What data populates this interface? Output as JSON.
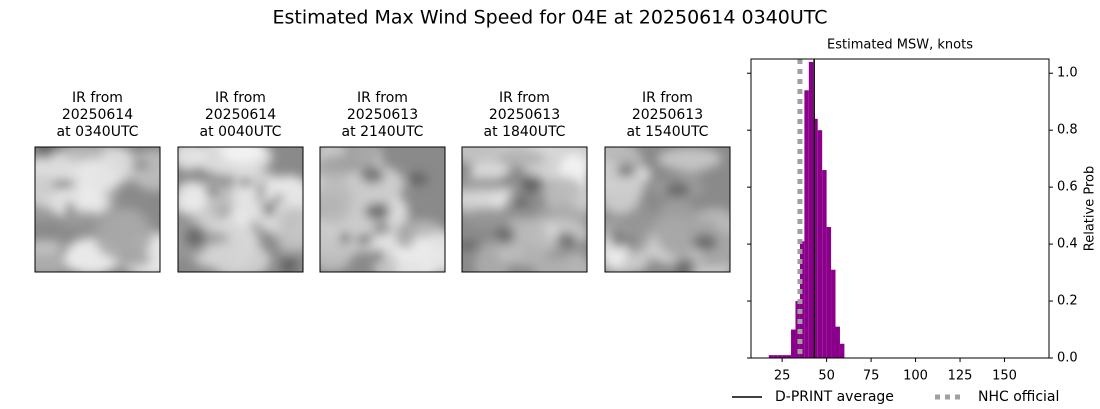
{
  "title": "Estimated Max Wind Speed for 04E at 20250614 0340UTC",
  "panels": [
    {
      "lines": [
        "IR from",
        "20250614",
        "at 0340UTC"
      ]
    },
    {
      "lines": [
        "IR from",
        "20250614",
        "at 0040UTC"
      ]
    },
    {
      "lines": [
        "IR from",
        "20250613",
        "at 2140UTC"
      ]
    },
    {
      "lines": [
        "IR from",
        "20250613",
        "at 1840UTC"
      ]
    },
    {
      "lines": [
        "IR from",
        "20250613",
        "at 1540UTC"
      ]
    }
  ],
  "chart_data": {
    "type": "histogram",
    "title": "Estimated MSW, knots",
    "ylabel": "Relative Prob",
    "color": "#8b008b",
    "bins": [
      17.5,
      20,
      22.5,
      25,
      27.5,
      30,
      32.5,
      35,
      37.5,
      40,
      42.5,
      45,
      47.5,
      50,
      52.5,
      55,
      57.5,
      60
    ],
    "values": [
      0.01,
      0.01,
      0.01,
      0.01,
      0.01,
      0.1,
      0.2,
      0.41,
      0.94,
      1.04,
      0.84,
      0.8,
      0.66,
      0.46,
      0.31,
      0.11,
      0.05
    ],
    "xlim": [
      7.5,
      175
    ],
    "ylim": [
      0,
      1.05
    ],
    "xticks": [
      25,
      50,
      75,
      100,
      125,
      150
    ],
    "yticks": [
      {
        "value": 0,
        "label": "0.0"
      },
      0.2,
      0.4,
      0.6,
      0.8,
      {
        "value": 1,
        "label": "1.0"
      }
    ],
    "lines": [
      {
        "name": "D-PRINT average",
        "value": 43,
        "color": "#000000",
        "style": "solid"
      },
      {
        "name": "NHC official",
        "value": 35,
        "color": "#a0a0a0",
        "style": "dotted"
      }
    ]
  }
}
